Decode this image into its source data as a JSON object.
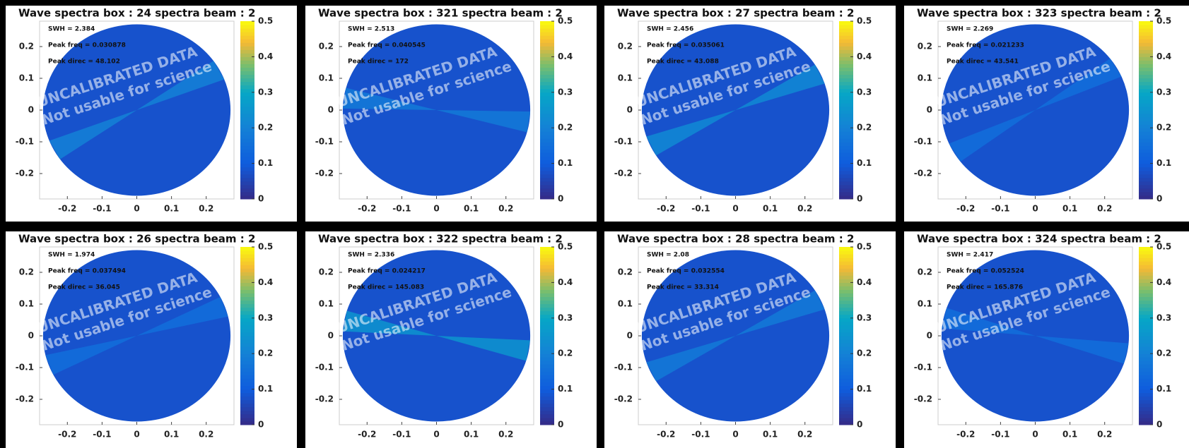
{
  "chart_data": [
    {
      "type": "polar",
      "title": "Wave spectra box : 24 spectra beam : 2",
      "annotations": [
        "SWH = 2.384",
        "Peak freq = 0.030878",
        "Peak direc = 48.102"
      ],
      "watermark": [
        "UNCALIBRATED DATA",
        "Not usable for science"
      ],
      "xlim": [
        -0.28,
        0.28
      ],
      "ylim": [
        -0.28,
        0.28
      ],
      "xticks": [
        -0.2,
        -0.1,
        0,
        0.1,
        0.2
      ],
      "yticks": [
        -0.2,
        -0.1,
        0,
        0.1,
        0.2
      ],
      "clim": [
        0,
        0.5
      ],
      "cticks": [
        0,
        0.1,
        0.2,
        0.3,
        0.4,
        0.5
      ],
      "radius": 0.27,
      "background": 0.08,
      "beam_direction": 28,
      "beam_value": 0.2
    },
    {
      "type": "polar",
      "title": "Wave spectra box : 321 spectra beam : 2",
      "annotations": [
        "SWH = 2.513",
        "Peak freq = 0.040545",
        "Peak direc = 172"
      ],
      "watermark": [
        "UNCALIBRATED DATA",
        "Not usable for science"
      ],
      "xlim": [
        -0.28,
        0.28
      ],
      "ylim": [
        -0.28,
        0.28
      ],
      "xticks": [
        -0.2,
        -0.1,
        0,
        0.1,
        0.2
      ],
      "yticks": [
        -0.2,
        -0.1,
        0,
        0.1,
        0.2
      ],
      "clim": [
        0,
        0.5
      ],
      "cticks": [
        0,
        0.1,
        0.2,
        0.3,
        0.4,
        0.5
      ],
      "radius": 0.27,
      "background": 0.08,
      "beam_direction": -8,
      "beam_value": 0.18
    },
    {
      "type": "polar",
      "title": "Wave spectra box : 27 spectra beam : 2",
      "annotations": [
        "SWH = 2.456",
        "Peak freq = 0.035061",
        "Peak direc = 43.088"
      ],
      "watermark": [
        "UNCALIBRATED DATA",
        "Not usable for science"
      ],
      "xlim": [
        -0.28,
        0.28
      ],
      "ylim": [
        -0.28,
        0.28
      ],
      "xticks": [
        -0.2,
        -0.1,
        0,
        0.1,
        0.2
      ],
      "yticks": [
        -0.2,
        -0.1,
        0,
        0.1,
        0.2
      ],
      "clim": [
        0,
        0.5
      ],
      "cticks": [
        0,
        0.1,
        0.2,
        0.3,
        0.4,
        0.5
      ],
      "radius": 0.27,
      "background": 0.08,
      "beam_direction": 25,
      "beam_value": 0.22
    },
    {
      "type": "polar",
      "title": "Wave spectra box : 323 spectra beam : 2",
      "annotations": [
        "SWH = 2.269",
        "Peak freq = 0.021233",
        "Peak direc = 43.541"
      ],
      "watermark": [
        "UNCALIBRATED DATA",
        "Not usable for science"
      ],
      "xlim": [
        -0.28,
        0.28
      ],
      "ylim": [
        -0.28,
        0.28
      ],
      "xticks": [
        -0.2,
        -0.1,
        0,
        0.1,
        0.2
      ],
      "yticks": [
        -0.2,
        -0.1,
        0,
        0.1,
        0.2
      ],
      "clim": [
        0,
        0.5
      ],
      "cticks": [
        0,
        0.1,
        0.2,
        0.3,
        0.4,
        0.5
      ],
      "radius": 0.27,
      "background": 0.08,
      "beam_direction": 30,
      "beam_value": 0.15
    },
    {
      "type": "polar",
      "title": "Wave spectra box : 26 spectra beam : 2",
      "annotations": [
        "SWH = 1.974",
        "Peak freq = 0.037494",
        "Peak direc = 36.045"
      ],
      "watermark": [
        "UNCALIBRATED DATA",
        "Not usable for science"
      ],
      "xlim": [
        -0.28,
        0.28
      ],
      "ylim": [
        -0.28,
        0.28
      ],
      "xticks": [
        -0.2,
        -0.1,
        0,
        0.1,
        0.2
      ],
      "yticks": [
        -0.2,
        -0.1,
        0,
        0.1,
        0.2
      ],
      "clim": [
        0,
        0.5
      ],
      "cticks": [
        0,
        0.1,
        0.2,
        0.3,
        0.4,
        0.5
      ],
      "radius": 0.27,
      "background": 0.08,
      "beam_direction": 20,
      "beam_value": 0.15
    },
    {
      "type": "polar",
      "title": "Wave spectra box : 322 spectra beam : 2",
      "annotations": [
        "SWH = 2.336",
        "Peak freq = 0.024217",
        "Peak direc = 145.083"
      ],
      "watermark": [
        "UNCALIBRATED DATA",
        "Not usable for science"
      ],
      "xlim": [
        -0.28,
        0.28
      ],
      "ylim": [
        -0.28,
        0.28
      ],
      "xticks": [
        -0.2,
        -0.1,
        0,
        0.1,
        0.2
      ],
      "yticks": [
        -0.2,
        -0.1,
        0,
        0.1,
        0.2
      ],
      "clim": [
        0,
        0.5
      ],
      "cticks": [
        0,
        0.1,
        0.2,
        0.3,
        0.4,
        0.5
      ],
      "radius": 0.27,
      "background": 0.08,
      "beam_direction": -10,
      "beam_value": 0.25
    },
    {
      "type": "polar",
      "title": "Wave spectra box : 28 spectra beam : 2",
      "annotations": [
        "SWH = 2.08",
        "Peak freq = 0.032554",
        "Peak direc = 33.314"
      ],
      "watermark": [
        "UNCALIBRATED DATA",
        "Not usable for science"
      ],
      "xlim": [
        -0.28,
        0.28
      ],
      "ylim": [
        -0.28,
        0.28
      ],
      "xticks": [
        -0.2,
        -0.1,
        0,
        0.1,
        0.2
      ],
      "yticks": [
        -0.2,
        -0.1,
        0,
        0.1,
        0.2
      ],
      "clim": [
        0,
        0.5
      ],
      "cticks": [
        0,
        0.1,
        0.2,
        0.3,
        0.4,
        0.5
      ],
      "radius": 0.27,
      "background": 0.08,
      "beam_direction": 25,
      "beam_value": 0.18
    },
    {
      "type": "polar",
      "title": "Wave spectra box : 324 spectra beam : 2",
      "annotations": [
        "SWH = 2.417",
        "Peak freq = 0.052524",
        "Peak direc = 165.876"
      ],
      "watermark": [
        "UNCALIBRATED DATA",
        "Not usable for science"
      ],
      "xlim": [
        -0.28,
        0.28
      ],
      "ylim": [
        -0.28,
        0.28
      ],
      "xticks": [
        -0.2,
        -0.1,
        0,
        0.1,
        0.2
      ],
      "yticks": [
        -0.2,
        -0.1,
        0,
        0.1,
        0.2
      ],
      "clim": [
        0,
        0.5
      ],
      "cticks": [
        0,
        0.1,
        0.2,
        0.3,
        0.4,
        0.5
      ],
      "radius": 0.27,
      "background": 0.08,
      "beam_direction": -12,
      "beam_value": 0.15
    }
  ]
}
